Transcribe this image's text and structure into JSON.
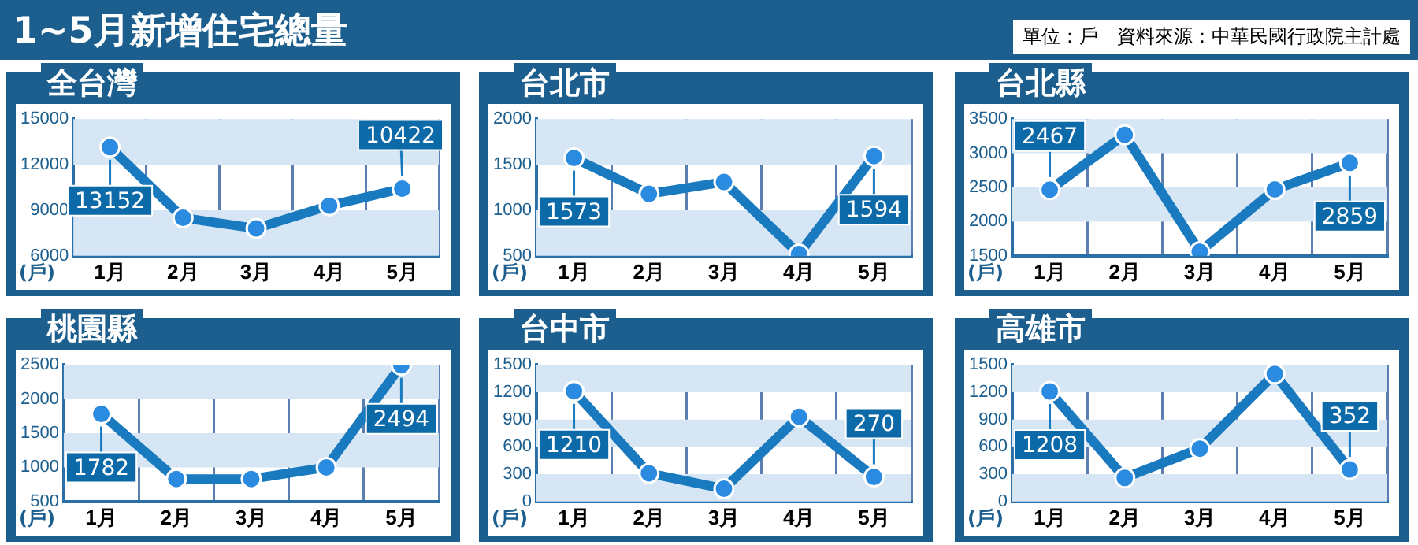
{
  "chart_data": [
    {
      "type": "other",
      "title": "1~5月新增住宅總量",
      "annotations": [
        "單位：戶　資料來源：中華民國行政院主計處"
      ]
    },
    {
      "type": "line",
      "title": "全台灣",
      "categories": [
        "1月",
        "2月",
        "3月",
        "4月",
        "5月"
      ],
      "values": [
        13152,
        8500,
        7800,
        9300,
        10422
      ],
      "value_labels": [
        "13152",
        null,
        null,
        null,
        "10422"
      ],
      "color": "#1a7abf",
      "ylim": [
        6000,
        15000
      ],
      "yticks": [
        6000,
        9000,
        12000,
        15000
      ],
      "ylabel": "(戶)",
      "grid": true,
      "marker": "circle"
    },
    {
      "type": "line",
      "title": "台北市",
      "categories": [
        "1月",
        "2月",
        "3月",
        "4月",
        "5月"
      ],
      "values": [
        1573,
        1180,
        1310,
        520,
        1594
      ],
      "value_labels": [
        "1573",
        null,
        null,
        null,
        "1594"
      ],
      "color": "#1a7abf",
      "ylim": [
        500,
        2000
      ],
      "yticks": [
        500,
        1000,
        1500,
        2000
      ],
      "ylabel": "(戶)",
      "grid": true,
      "marker": "circle"
    },
    {
      "type": "line",
      "title": "台北縣",
      "categories": [
        "1月",
        "2月",
        "3月",
        "4月",
        "5月"
      ],
      "values": [
        2467,
        3270,
        1560,
        2470,
        2859
      ],
      "value_labels": [
        "2467",
        null,
        null,
        null,
        "2859"
      ],
      "color": "#1a7abf",
      "ylim": [
        1500,
        3500
      ],
      "yticks": [
        1500,
        2000,
        2500,
        3000,
        3500
      ],
      "ylabel": "(戶)",
      "grid": true,
      "marker": "circle"
    },
    {
      "type": "line",
      "title": "桃園縣",
      "categories": [
        "1月",
        "2月",
        "3月",
        "4月",
        "5月"
      ],
      "values": [
        1782,
        830,
        830,
        1000,
        2494
      ],
      "value_labels": [
        "1782",
        null,
        null,
        null,
        "2494"
      ],
      "color": "#1a7abf",
      "ylim": [
        500,
        2500
      ],
      "yticks": [
        500,
        1000,
        1500,
        2000,
        2500
      ],
      "ylabel": "(戶)",
      "grid": true,
      "marker": "circle"
    },
    {
      "type": "line",
      "title": "台中市",
      "categories": [
        "1月",
        "2月",
        "3月",
        "4月",
        "5月"
      ],
      "values": [
        1210,
        310,
        140,
        930,
        270
      ],
      "value_labels": [
        "1210",
        null,
        null,
        null,
        "270"
      ],
      "color": "#1a7abf",
      "ylim": [
        0,
        1500
      ],
      "yticks": [
        0,
        300,
        600,
        900,
        1200,
        1500
      ],
      "ylabel": "(戶)",
      "grid": true,
      "marker": "circle"
    },
    {
      "type": "line",
      "title": "高雄市",
      "categories": [
        "1月",
        "2月",
        "3月",
        "4月",
        "5月"
      ],
      "values": [
        1208,
        260,
        580,
        1400,
        352
      ],
      "value_labels": [
        "1208",
        null,
        null,
        null,
        "352"
      ],
      "color": "#1a7abf",
      "ylim": [
        0,
        1500
      ],
      "yticks": [
        0,
        300,
        600,
        900,
        1200,
        1500
      ],
      "ylabel": "(戶)",
      "grid": true,
      "marker": "circle"
    }
  ]
}
